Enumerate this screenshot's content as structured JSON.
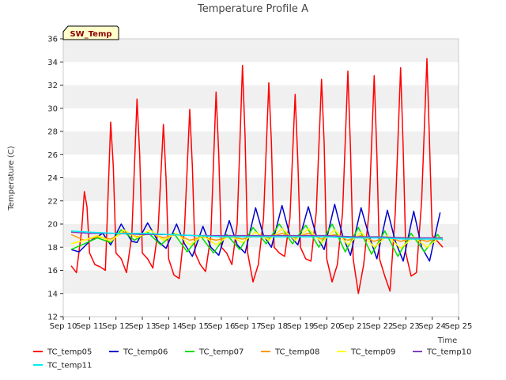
{
  "chart_data": {
    "type": "line",
    "title": "Temperature Profile A",
    "xlabel": "Time",
    "ylabel": "Temperature (C)",
    "badge": "SW_Temp",
    "ylim": [
      12,
      36
    ],
    "xlim": [
      10,
      25
    ],
    "y_ticks": [
      "12",
      "14",
      "16",
      "18",
      "20",
      "22",
      "24",
      "26",
      "28",
      "30",
      "32",
      "34",
      "36"
    ],
    "x_ticks": [
      "Sep 10",
      "Sep 11",
      "Sep 12",
      "Sep 13",
      "Sep 14",
      "Sep 15",
      "Sep 16",
      "Sep 17",
      "Sep 18",
      "Sep 19",
      "Sep 20",
      "Sep 21",
      "Sep 22",
      "Sep 23",
      "Sep 24",
      "Sep 25"
    ],
    "grid": "horizontal bands",
    "legend_placement": "bottom",
    "series": [
      {
        "name": "TC_temp05",
        "color": "#ff0000",
        "x": [
          10.3,
          10.5,
          10.7,
          10.8,
          10.9,
          11.0,
          11.2,
          11.4,
          11.6,
          11.8,
          11.9,
          12.0,
          12.2,
          12.4,
          12.6,
          12.8,
          12.9,
          13.0,
          13.2,
          13.4,
          13.6,
          13.8,
          13.9,
          14.0,
          14.2,
          14.4,
          14.6,
          14.8,
          14.9,
          15.0,
          15.2,
          15.4,
          15.6,
          15.8,
          15.9,
          16.0,
          16.2,
          16.4,
          16.6,
          16.8,
          16.9,
          17.0,
          17.2,
          17.4,
          17.6,
          17.8,
          17.9,
          18.0,
          18.2,
          18.4,
          18.6,
          18.8,
          18.9,
          19.0,
          19.2,
          19.4,
          19.6,
          19.8,
          19.9,
          20.0,
          20.2,
          20.4,
          20.6,
          20.8,
          20.9,
          21.0,
          21.2,
          21.4,
          21.6,
          21.8,
          21.9,
          22.0,
          22.2,
          22.4,
          22.6,
          22.8,
          22.9,
          23.0,
          23.2,
          23.4,
          23.6,
          23.8,
          23.9,
          24.0,
          24.2,
          24.4
        ],
        "y": [
          16.4,
          15.8,
          19.5,
          22.8,
          21.5,
          17.5,
          16.5,
          16.3,
          16.0,
          28.8,
          25.0,
          17.5,
          17.0,
          15.8,
          19.0,
          30.8,
          26.0,
          17.5,
          17.0,
          16.2,
          19.5,
          28.6,
          24.0,
          17.0,
          15.6,
          15.3,
          19.5,
          29.9,
          25.0,
          17.5,
          16.5,
          15.9,
          19.0,
          31.4,
          26.0,
          18.0,
          17.5,
          16.5,
          20.0,
          33.7,
          27.5,
          17.5,
          15.0,
          16.5,
          20.5,
          32.2,
          27.0,
          18.0,
          17.5,
          17.2,
          20.5,
          31.2,
          25.5,
          18.0,
          17.0,
          16.8,
          21.0,
          32.5,
          27.0,
          17.0,
          15.0,
          16.5,
          21.0,
          33.2,
          26.5,
          17.0,
          14.0,
          16.5,
          21.0,
          32.8,
          26.0,
          17.0,
          15.5,
          14.2,
          21.0,
          33.5,
          26.5,
          17.5,
          15.5,
          15.8,
          22.0,
          34.3,
          27.0,
          19.0,
          18.5,
          18.0
        ]
      },
      {
        "name": "TC_temp06",
        "color": "#0000cc",
        "x": [
          10.3,
          10.6,
          11.0,
          11.5,
          11.8,
          12.2,
          12.6,
          12.8,
          13.2,
          13.6,
          13.9,
          14.3,
          14.6,
          14.9,
          15.3,
          15.6,
          15.9,
          16.3,
          16.6,
          16.9,
          17.3,
          17.6,
          17.9,
          18.3,
          18.6,
          18.9,
          19.3,
          19.6,
          19.9,
          20.3,
          20.6,
          20.9,
          21.3,
          21.6,
          21.9,
          22.3,
          22.6,
          22.9,
          23.3,
          23.6,
          23.9,
          24.3
        ],
        "y": [
          17.8,
          17.6,
          18.5,
          19.2,
          18.2,
          20.0,
          18.5,
          18.4,
          20.1,
          18.5,
          17.9,
          20.0,
          18.3,
          17.2,
          19.8,
          18.0,
          17.3,
          20.3,
          18.2,
          17.5,
          21.4,
          19.0,
          18.0,
          21.6,
          19.0,
          18.2,
          21.5,
          19.0,
          17.8,
          21.7,
          19.0,
          17.3,
          21.4,
          19.0,
          17.0,
          21.2,
          18.5,
          16.8,
          21.1,
          18.0,
          16.8,
          21.0
        ]
      },
      {
        "name": "TC_temp07",
        "color": "#00dd00",
        "x": [
          10.3,
          10.8,
          11.3,
          11.8,
          12.2,
          12.7,
          13.2,
          13.7,
          14.2,
          14.7,
          15.2,
          15.7,
          16.2,
          16.7,
          17.2,
          17.7,
          18.2,
          18.7,
          19.2,
          19.7,
          20.2,
          20.7,
          21.2,
          21.7,
          22.2,
          22.7,
          23.2,
          23.7,
          24.2,
          24.4
        ],
        "y": [
          17.8,
          18.3,
          18.8,
          18.4,
          19.5,
          18.6,
          19.3,
          18.2,
          19.2,
          17.6,
          19.0,
          17.5,
          19.1,
          17.8,
          19.7,
          18.3,
          20.0,
          18.3,
          19.9,
          18.0,
          20.0,
          17.6,
          19.7,
          17.4,
          19.4,
          17.2,
          19.2,
          17.6,
          19.1,
          18.6
        ]
      },
      {
        "name": "TC_temp08",
        "color": "#ff9900",
        "x": [
          10.3,
          10.8,
          11.3,
          11.8,
          12.3,
          12.8,
          13.3,
          13.8,
          14.3,
          14.8,
          15.3,
          15.8,
          16.3,
          16.8,
          17.3,
          17.8,
          18.3,
          18.8,
          19.3,
          19.8,
          20.3,
          20.8,
          21.3,
          21.8,
          22.3,
          22.8,
          23.3,
          23.8,
          24.3
        ],
        "y": [
          19.1,
          18.6,
          18.9,
          18.7,
          19.3,
          18.9,
          19.2,
          18.8,
          19.1,
          18.6,
          18.9,
          18.6,
          18.9,
          18.7,
          19.0,
          18.8,
          19.2,
          18.8,
          19.2,
          18.7,
          19.1,
          18.6,
          19.0,
          18.5,
          18.9,
          18.5,
          18.8,
          18.5,
          18.8
        ]
      },
      {
        "name": "TC_temp09",
        "color": "#ffff00",
        "x": [
          10.3,
          10.8,
          11.3,
          11.8,
          12.3,
          12.8,
          13.3,
          13.8,
          14.3,
          14.8,
          15.3,
          15.8,
          16.3,
          16.8,
          17.3,
          17.8,
          18.3,
          18.8,
          19.3,
          19.8,
          20.3,
          20.8,
          21.3,
          21.8,
          22.3,
          22.8,
          23.3,
          23.8,
          24.3
        ],
        "y": [
          18.3,
          18.6,
          19.0,
          18.5,
          19.5,
          18.8,
          19.5,
          18.6,
          19.2,
          18.2,
          19.0,
          18.2,
          19.0,
          18.4,
          19.3,
          18.6,
          19.6,
          18.6,
          19.6,
          18.4,
          19.5,
          18.2,
          19.3,
          18.0,
          19.0,
          17.9,
          18.9,
          18.0,
          18.9
        ]
      },
      {
        "name": "TC_temp10",
        "color": "#7f3fbf",
        "x": [
          10.3,
          11.0,
          12.0,
          13.0,
          14.0,
          15.0,
          16.0,
          17.0,
          18.0,
          19.0,
          20.0,
          21.0,
          22.0,
          23.0,
          24.0,
          24.4
        ],
        "y": [
          19.3,
          19.2,
          19.2,
          19.1,
          19.1,
          19.0,
          19.0,
          19.0,
          19.0,
          19.0,
          19.0,
          18.9,
          18.9,
          18.8,
          18.8,
          18.8
        ]
      },
      {
        "name": "TC_temp11",
        "color": "#00eeee",
        "x": [
          10.3,
          11.0,
          12.0,
          13.0,
          14.0,
          15.0,
          16.0,
          17.0,
          18.0,
          19.0,
          20.0,
          21.0,
          22.0,
          23.0,
          24.0,
          24.4
        ],
        "y": [
          19.4,
          19.3,
          19.2,
          19.2,
          19.1,
          19.0,
          18.9,
          18.9,
          18.9,
          18.9,
          18.9,
          18.8,
          18.8,
          18.7,
          18.7,
          18.7
        ]
      }
    ]
  }
}
